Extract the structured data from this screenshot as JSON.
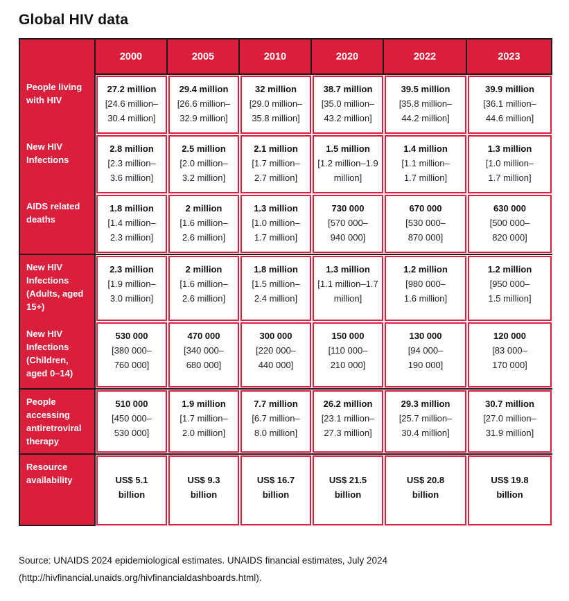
{
  "page": {
    "title": "Global HIV data",
    "source_line1": "Source: UNAIDS 2024 epidemiological estimates. UNAIDS financial estimates, July 2024",
    "source_line2": "(http://hivfinancial.unaids.org/hivfinancialdashboards.html)."
  },
  "colors": {
    "brand_red": "#DA1E3C",
    "frame_black": "#1b1b1b",
    "header_text": "#ffffff"
  },
  "table": {
    "years": [
      "2000",
      "2005",
      "2010",
      "2020",
      "2022",
      "2023"
    ],
    "rows": [
      {
        "label": "People living\nwith HIV",
        "cells": [
          {
            "value": "27.2 million",
            "range": "[24.6 million–\n30.4 million]"
          },
          {
            "value": "29.4 million",
            "range": "[26.6 million–\n32.9 million]"
          },
          {
            "value": "32 million",
            "range": "[29.0 million–\n35.8 million]"
          },
          {
            "value": "38.7 million",
            "range": "[35.0 million–\n43.2 million]"
          },
          {
            "value": "39.5 million",
            "range": "[35.8 million–\n44.2 million]"
          },
          {
            "value": "39.9 million",
            "range": "[36.1 million–\n44.6 million]"
          }
        ]
      },
      {
        "label": "New HIV\nInfections",
        "cells": [
          {
            "value": "2.8 million",
            "range": "[2.3 million–\n3.6 million]"
          },
          {
            "value": "2.5 million",
            "range": "[2.0 million–\n3.2 million]"
          },
          {
            "value": "2.1 million",
            "range": "[1.7 million–\n2.7 million]"
          },
          {
            "value": "1.5 million",
            "range": "[1.2 million–1.9\nmillion]"
          },
          {
            "value": "1.4 million",
            "range": "[1.1 million–\n1.7 million]"
          },
          {
            "value": "1.3 million",
            "range": "[1.0 million–\n1.7 million]"
          }
        ]
      },
      {
        "label": "AIDS related\ndeaths",
        "cells": [
          {
            "value": "1.8 million",
            "range": "[1.4 million–\n2.3 million]"
          },
          {
            "value": "2 million",
            "range": "[1.6 million–\n2.6 million]"
          },
          {
            "value": "1.3 million",
            "range": "[1.0 million–\n1.7 million]"
          },
          {
            "value": "730 000",
            "range": "[570 000–\n940 000]"
          },
          {
            "value": "670 000",
            "range": "[530 000–\n870 000]"
          },
          {
            "value": "630 000",
            "range": "[500 000–\n820 000]"
          }
        ]
      },
      {
        "label": "New HIV\nInfections\n(Adults, aged\n15+)",
        "cells": [
          {
            "value": "2.3 million",
            "range": "[1.9 million–\n3.0 million]"
          },
          {
            "value": "2 million",
            "range": "[1.6 million–\n2.6 million]"
          },
          {
            "value": "1.8 million",
            "range": "[1.5 million–\n2.4 million]"
          },
          {
            "value": "1.3 million",
            "range": "[1.1 million–1.7\nmillion]"
          },
          {
            "value": "1.2 million",
            "range": "[980 000–\n1.6 million]"
          },
          {
            "value": "1.2 million",
            "range": "[950 000–\n1.5 million]"
          }
        ]
      },
      {
        "label": "New HIV\nInfections\n(Children,\naged 0–14)",
        "cells": [
          {
            "value": "530 000",
            "range": "[380 000–\n760 000]"
          },
          {
            "value": "470 000",
            "range": "[340 000–\n680 000]"
          },
          {
            "value": "300 000",
            "range": "[220 000–\n440 000]"
          },
          {
            "value": "150 000",
            "range": "[110 000–\n210 000]"
          },
          {
            "value": "130 000",
            "range": "[94 000–\n190 000]"
          },
          {
            "value": "120 000",
            "range": "[83 000–\n170 000]"
          }
        ]
      },
      {
        "label": "People\naccessing\nantiretroviral\ntherapy",
        "cells": [
          {
            "value": "510 000",
            "range": "[450 000–\n530 000]"
          },
          {
            "value": "1.9 million",
            "range": "[1.7 million–\n2.0 million]"
          },
          {
            "value": "7.7 million",
            "range": "[6.7 million–\n8.0 million]"
          },
          {
            "value": "26.2 million",
            "range": "[23.1 million–\n27.3 million]"
          },
          {
            "value": "29.3 million",
            "range": "[25.7 million–\n30.4 million]"
          },
          {
            "value": "30.7 million",
            "range": "[27.0 million–\n31.9 million]"
          }
        ]
      },
      {
        "label": "Resource\navailability",
        "cells": [
          {
            "value": "US$ 5.1\nbillion",
            "range": ""
          },
          {
            "value": "US$ 9.3\nbillion",
            "range": ""
          },
          {
            "value": "US$ 16.7\nbillion",
            "range": ""
          },
          {
            "value": "US$ 21.5\nbillion",
            "range": ""
          },
          {
            "value": "US$ 20.8\nbillion",
            "range": ""
          },
          {
            "value": "US$ 19.8\nbillion",
            "range": ""
          }
        ]
      }
    ]
  }
}
